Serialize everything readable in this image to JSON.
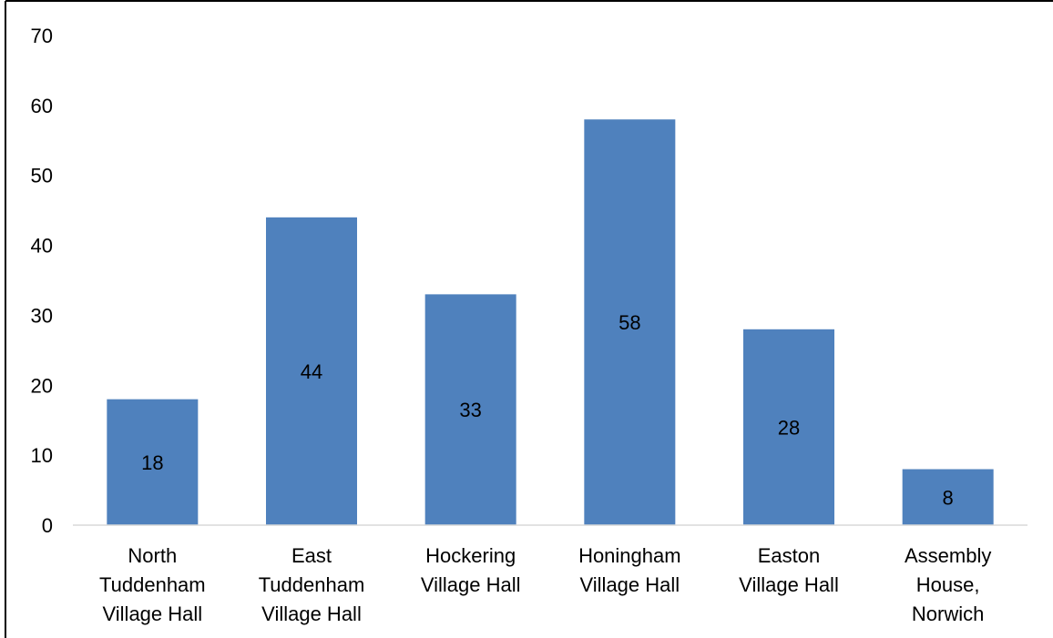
{
  "chart_data": {
    "type": "bar",
    "title": "",
    "xlabel": "",
    "ylabel": "",
    "categories": [
      [
        "North",
        "Tuddenham",
        "Village Hall"
      ],
      [
        "East",
        "Tuddenham",
        "Village Hall"
      ],
      [
        "Hockering",
        "Village Hall"
      ],
      [
        "Honingham",
        "Village Hall"
      ],
      [
        "Easton",
        "Village Hall"
      ],
      [
        "Assembly",
        "House,",
        "Norwich"
      ]
    ],
    "values": [
      18,
      44,
      33,
      58,
      28,
      8
    ],
    "data_labels": [
      "18",
      "44",
      "33",
      "58",
      "28",
      "8"
    ],
    "ylim": [
      0,
      70
    ],
    "yticks": [
      0,
      10,
      20,
      30,
      40,
      50,
      60,
      70
    ],
    "ytick_labels": [
      "0",
      "10",
      "20",
      "30",
      "40",
      "50",
      "60",
      "70"
    ],
    "grid": false,
    "legend": "none",
    "bar_color": "#4f81bd",
    "axis_color": "#d9d9d9"
  }
}
